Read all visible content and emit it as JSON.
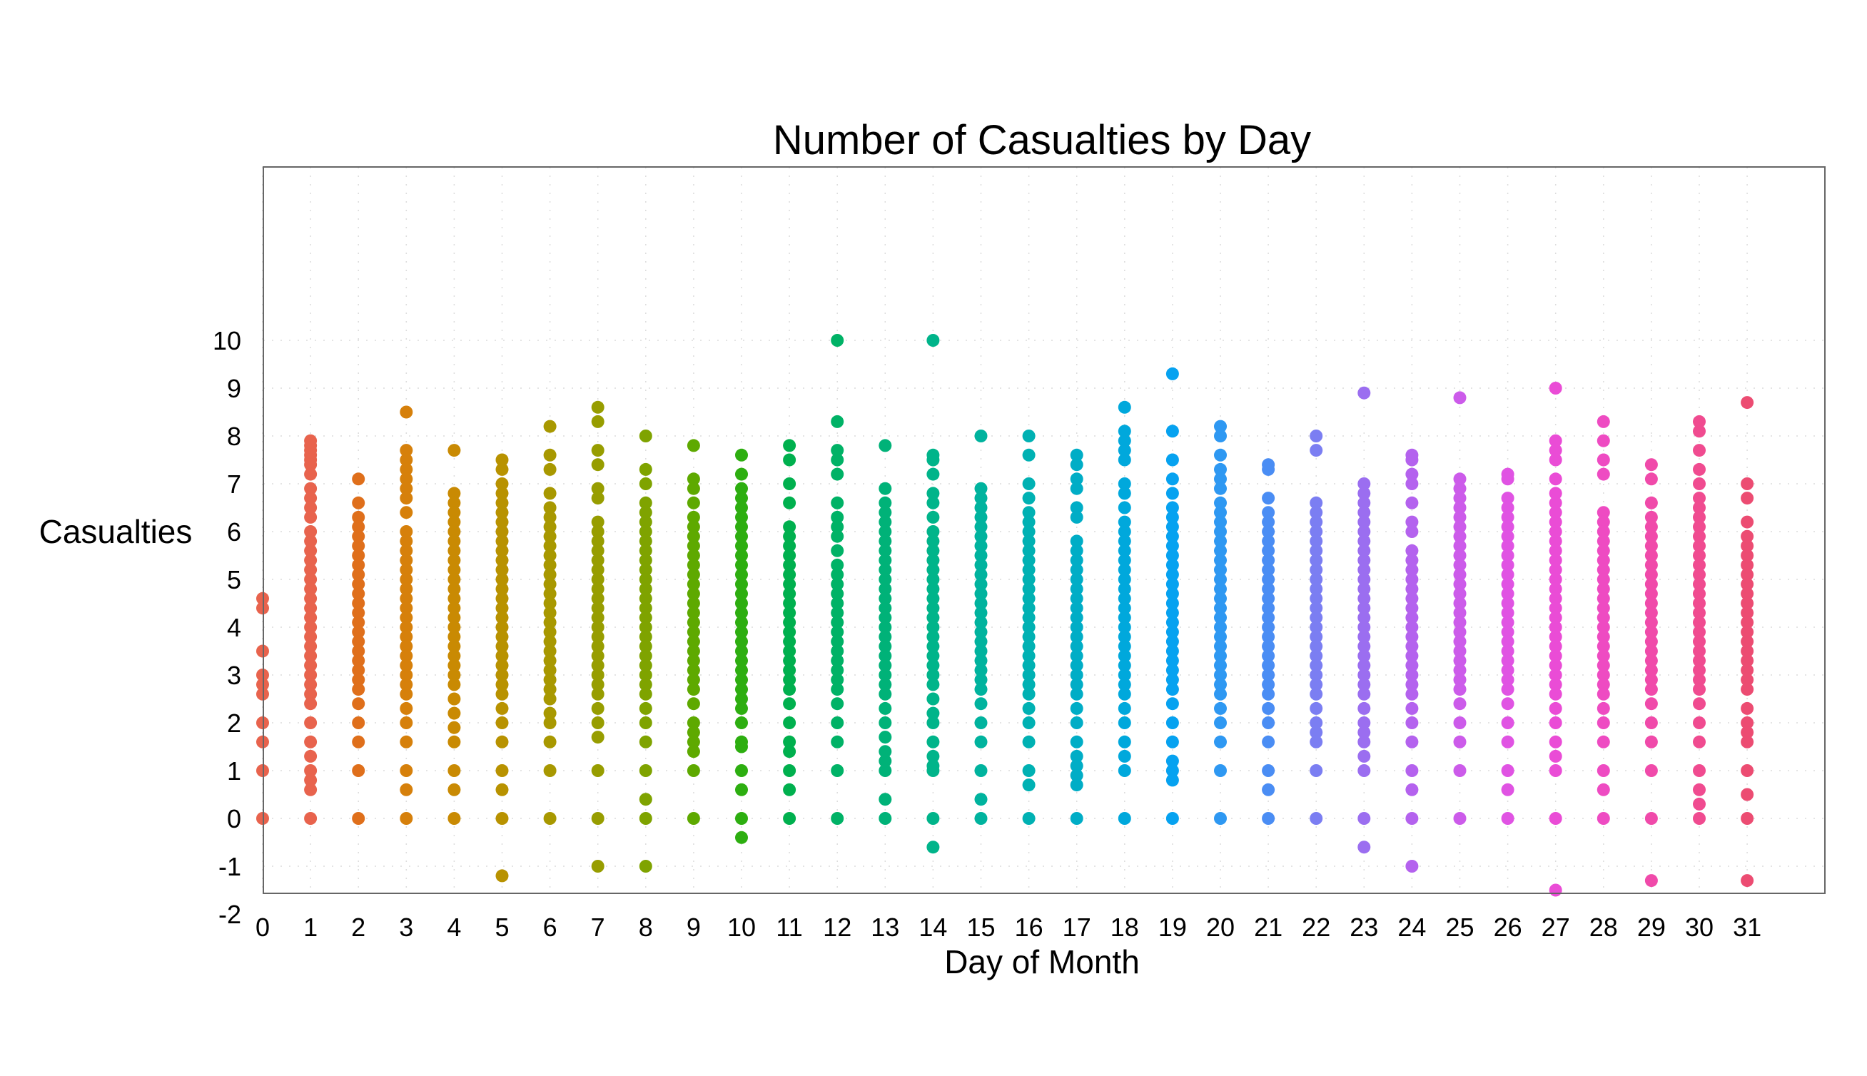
{
  "chart_data": {
    "type": "scatter",
    "title": "Number of Casualties by Day",
    "xlabel": "Day of Month",
    "ylabel": "Casualties",
    "xlim": [
      0,
      32.5
    ],
    "ylim": [
      -1.6,
      13.6
    ],
    "x_ticks": [
      0,
      1,
      2,
      3,
      4,
      5,
      6,
      7,
      8,
      9,
      10,
      11,
      12,
      13,
      14,
      15,
      16,
      17,
      18,
      19,
      20,
      21,
      22,
      23,
      24,
      25,
      26,
      27,
      28,
      29,
      30,
      31
    ],
    "y_ticks": [
      -2,
      -1,
      0,
      1,
      2,
      3,
      4,
      5,
      6,
      7,
      8,
      9,
      10
    ],
    "grid": true,
    "legend": "none",
    "series": [
      {
        "x": 0,
        "color": "#E8634D",
        "values": [
          4.6,
          4.4,
          3.5,
          3.0,
          2.8,
          2.6,
          2.0,
          1.6,
          1.0,
          0
        ]
      },
      {
        "x": 1,
        "color": "#E8634D",
        "values": [
          7.9,
          7.8,
          7.7,
          7.6,
          7.5,
          7.4,
          7.2,
          6.9,
          6.7,
          6.5,
          6.3,
          6.0,
          5.8,
          5.6,
          5.4,
          5.2,
          5.0,
          4.8,
          4.6,
          4.4,
          4.2,
          4.0,
          3.8,
          3.6,
          3.4,
          3.2,
          3.0,
          2.8,
          2.6,
          2.4,
          2.0,
          1.6,
          1.3,
          1.0,
          0.8,
          0.6,
          0
        ]
      },
      {
        "x": 2,
        "color": "#DF6F1B",
        "values": [
          7.1,
          6.6,
          6.3,
          6.1,
          5.9,
          5.7,
          5.5,
          5.3,
          5.1,
          4.9,
          4.7,
          4.5,
          4.3,
          4.1,
          3.9,
          3.7,
          3.5,
          3.3,
          3.1,
          2.9,
          2.7,
          2.4,
          2.0,
          1.6,
          1.0,
          0
        ]
      },
      {
        "x": 3,
        "color": "#D6800B",
        "values": [
          8.5,
          7.7,
          7.5,
          7.3,
          7.1,
          6.9,
          6.7,
          6.4,
          6.0,
          5.8,
          5.6,
          5.4,
          5.2,
          5.0,
          4.8,
          4.6,
          4.4,
          4.2,
          4.0,
          3.8,
          3.6,
          3.4,
          3.2,
          3.0,
          2.8,
          2.6,
          2.3,
          2.0,
          1.6,
          1.0,
          0.6,
          0
        ]
      },
      {
        "x": 4,
        "color": "#C98A03",
        "values": [
          7.7,
          6.8,
          6.6,
          6.4,
          6.2,
          6.0,
          5.8,
          5.6,
          5.4,
          5.2,
          5.0,
          4.8,
          4.6,
          4.4,
          4.2,
          4.0,
          3.8,
          3.6,
          3.4,
          3.2,
          3.0,
          2.8,
          2.5,
          2.2,
          1.9,
          1.6,
          1.0,
          0.6,
          0
        ]
      },
      {
        "x": 5,
        "color": "#B89200",
        "values": [
          7.5,
          7.3,
          7.0,
          6.8,
          6.6,
          6.4,
          6.2,
          6.0,
          5.8,
          5.6,
          5.4,
          5.2,
          5.0,
          4.8,
          4.6,
          4.4,
          4.2,
          4.0,
          3.8,
          3.6,
          3.4,
          3.2,
          3.0,
          2.8,
          2.6,
          2.3,
          2.0,
          1.6,
          1.0,
          0.6,
          0,
          -1.2
        ]
      },
      {
        "x": 6,
        "color": "#A89800",
        "values": [
          8.2,
          7.6,
          7.3,
          6.8,
          6.5,
          6.3,
          6.1,
          5.9,
          5.7,
          5.5,
          5.3,
          5.1,
          4.9,
          4.7,
          4.5,
          4.3,
          4.1,
          3.9,
          3.7,
          3.5,
          3.3,
          3.1,
          2.9,
          2.7,
          2.5,
          2.2,
          2.0,
          1.6,
          1.0,
          0
        ]
      },
      {
        "x": 7,
        "color": "#979D00",
        "values": [
          8.6,
          8.3,
          7.7,
          7.4,
          6.9,
          6.7,
          6.2,
          6.0,
          5.8,
          5.6,
          5.4,
          5.2,
          5.0,
          4.8,
          4.6,
          4.4,
          4.2,
          4.0,
          3.8,
          3.6,
          3.4,
          3.2,
          3.0,
          2.8,
          2.6,
          2.3,
          2.0,
          1.7,
          1.0,
          0,
          -1.0
        ]
      },
      {
        "x": 8,
        "color": "#7FA300",
        "values": [
          8.0,
          7.3,
          7.0,
          6.6,
          6.4,
          6.2,
          6.0,
          5.8,
          5.6,
          5.4,
          5.2,
          5.0,
          4.8,
          4.6,
          4.4,
          4.2,
          4.0,
          3.8,
          3.6,
          3.4,
          3.2,
          3.0,
          2.8,
          2.6,
          2.3,
          2.0,
          1.6,
          1.0,
          0.4,
          0,
          -1.0
        ]
      },
      {
        "x": 9,
        "color": "#5EA900",
        "values": [
          7.8,
          7.1,
          6.9,
          6.6,
          6.3,
          6.1,
          5.9,
          5.7,
          5.5,
          5.3,
          5.1,
          4.9,
          4.7,
          4.5,
          4.3,
          4.1,
          3.9,
          3.7,
          3.5,
          3.3,
          3.1,
          2.9,
          2.7,
          2.4,
          2.0,
          1.8,
          1.6,
          1.4,
          1.0,
          0
        ]
      },
      {
        "x": 10,
        "color": "#2DAE10",
        "values": [
          7.6,
          7.2,
          6.9,
          6.7,
          6.5,
          6.3,
          6.1,
          5.9,
          5.7,
          5.5,
          5.3,
          5.1,
          4.9,
          4.7,
          4.5,
          4.3,
          4.1,
          3.9,
          3.7,
          3.5,
          3.3,
          3.1,
          2.9,
          2.7,
          2.5,
          2.3,
          2.0,
          1.6,
          1.5,
          1.0,
          0.6,
          0,
          -0.4
        ]
      },
      {
        "x": 11,
        "color": "#00B04E",
        "values": [
          7.8,
          7.5,
          7.0,
          6.6,
          6.1,
          5.9,
          5.7,
          5.5,
          5.3,
          5.1,
          4.9,
          4.7,
          4.5,
          4.3,
          4.1,
          3.9,
          3.7,
          3.5,
          3.3,
          3.1,
          2.9,
          2.7,
          2.4,
          2.0,
          1.6,
          1.4,
          1.0,
          0.6,
          0
        ]
      },
      {
        "x": 12,
        "color": "#00B266",
        "values": [
          10.0,
          8.3,
          7.7,
          7.5,
          7.2,
          6.6,
          6.3,
          6.1,
          5.9,
          5.6,
          5.3,
          5.1,
          4.9,
          4.7,
          4.5,
          4.3,
          4.1,
          3.9,
          3.7,
          3.5,
          3.3,
          3.1,
          2.9,
          2.7,
          2.4,
          2.0,
          1.6,
          1.0,
          0
        ]
      },
      {
        "x": 13,
        "color": "#00B278",
        "values": [
          7.8,
          6.9,
          6.6,
          6.4,
          6.2,
          6.0,
          5.8,
          5.6,
          5.4,
          5.2,
          5.0,
          4.8,
          4.6,
          4.4,
          4.2,
          4.0,
          3.8,
          3.6,
          3.4,
          3.2,
          3.0,
          2.8,
          2.6,
          2.3,
          2.0,
          1.7,
          1.4,
          1.2,
          1.0,
          0.4,
          0
        ]
      },
      {
        "x": 14,
        "color": "#00B48A",
        "values": [
          10.0,
          7.6,
          7.5,
          7.2,
          6.8,
          6.6,
          6.3,
          6.0,
          5.8,
          5.6,
          5.4,
          5.2,
          5.0,
          4.8,
          4.6,
          4.4,
          4.2,
          4.0,
          3.8,
          3.6,
          3.4,
          3.2,
          3.0,
          2.8,
          2.5,
          2.2,
          2.0,
          1.6,
          1.3,
          1.1,
          1.0,
          0,
          -0.6
        ]
      },
      {
        "x": 15,
        "color": "#00B39E",
        "values": [
          8.0,
          6.9,
          6.7,
          6.5,
          6.3,
          6.1,
          5.9,
          5.7,
          5.5,
          5.3,
          5.1,
          4.9,
          4.7,
          4.5,
          4.3,
          4.1,
          3.9,
          3.7,
          3.5,
          3.3,
          3.1,
          2.9,
          2.7,
          2.4,
          2.0,
          1.6,
          1.0,
          0.4,
          0
        ]
      },
      {
        "x": 16,
        "color": "#00B1B3",
        "values": [
          8.0,
          7.6,
          7.0,
          6.7,
          6.4,
          6.2,
          6.0,
          5.8,
          5.6,
          5.4,
          5.2,
          5.0,
          4.8,
          4.6,
          4.4,
          4.2,
          4.0,
          3.8,
          3.6,
          3.4,
          3.2,
          3.0,
          2.8,
          2.6,
          2.3,
          2.0,
          1.6,
          1.0,
          0.7,
          0
        ]
      },
      {
        "x": 17,
        "color": "#00ADC6",
        "values": [
          7.6,
          7.4,
          7.1,
          6.9,
          6.5,
          6.3,
          5.8,
          5.6,
          5.4,
          5.2,
          5.0,
          4.8,
          4.6,
          4.4,
          4.2,
          4.0,
          3.8,
          3.6,
          3.4,
          3.2,
          3.0,
          2.8,
          2.6,
          2.3,
          2.0,
          1.6,
          1.3,
          1.1,
          0.9,
          0.7,
          0
        ]
      },
      {
        "x": 18,
        "color": "#00A8DC",
        "values": [
          8.6,
          8.1,
          7.9,
          7.7,
          7.5,
          7.0,
          6.8,
          6.5,
          6.2,
          6.0,
          5.8,
          5.6,
          5.4,
          5.2,
          5.0,
          4.8,
          4.6,
          4.4,
          4.2,
          4.0,
          3.8,
          3.6,
          3.4,
          3.2,
          3.0,
          2.8,
          2.6,
          2.3,
          2.0,
          1.6,
          1.3,
          1.0,
          0
        ]
      },
      {
        "x": 19,
        "color": "#06A2F0",
        "values": [
          9.3,
          8.1,
          7.5,
          7.1,
          6.8,
          6.5,
          6.3,
          6.1,
          5.9,
          5.7,
          5.5,
          5.3,
          5.1,
          4.9,
          4.7,
          4.5,
          4.3,
          4.1,
          3.9,
          3.7,
          3.5,
          3.3,
          3.1,
          2.9,
          2.7,
          2.4,
          2.0,
          1.6,
          1.2,
          1.0,
          0.8,
          0
        ]
      },
      {
        "x": 20,
        "color": "#2E98F2",
        "values": [
          8.2,
          8.0,
          7.6,
          7.3,
          7.1,
          6.9,
          6.6,
          6.4,
          6.2,
          6.0,
          5.8,
          5.6,
          5.4,
          5.2,
          5.0,
          4.8,
          4.6,
          4.4,
          4.2,
          4.0,
          3.8,
          3.6,
          3.4,
          3.2,
          3.0,
          2.8,
          2.6,
          2.3,
          2.0,
          1.6,
          1.0,
          0
        ]
      },
      {
        "x": 21,
        "color": "#4A8DF4",
        "values": [
          7.4,
          7.3,
          6.7,
          6.4,
          6.2,
          6.0,
          5.8,
          5.6,
          5.4,
          5.2,
          5.0,
          4.8,
          4.6,
          4.4,
          4.2,
          4.0,
          3.8,
          3.6,
          3.4,
          3.2,
          3.0,
          2.8,
          2.6,
          2.3,
          2.0,
          1.6,
          1.0,
          0.6,
          0
        ]
      },
      {
        "x": 22,
        "color": "#7B7EF2",
        "values": [
          8.0,
          7.7,
          6.6,
          6.4,
          6.2,
          6.0,
          5.8,
          5.6,
          5.4,
          5.2,
          5.0,
          4.8,
          4.6,
          4.4,
          4.2,
          4.0,
          3.8,
          3.6,
          3.4,
          3.2,
          3.0,
          2.8,
          2.6,
          2.3,
          2.0,
          1.8,
          1.6,
          1.0,
          0
        ]
      },
      {
        "x": 23,
        "color": "#9B6EF0",
        "values": [
          8.9,
          7.0,
          6.8,
          6.6,
          6.4,
          6.2,
          6.0,
          5.8,
          5.6,
          5.4,
          5.2,
          5.0,
          4.8,
          4.6,
          4.4,
          4.2,
          4.0,
          3.8,
          3.6,
          3.4,
          3.2,
          3.0,
          2.8,
          2.6,
          2.3,
          2.0,
          1.8,
          1.6,
          1.3,
          1.0,
          0,
          -0.6
        ]
      },
      {
        "x": 24,
        "color": "#B462EE",
        "values": [
          7.6,
          7.5,
          7.2,
          7.0,
          6.6,
          6.2,
          6.0,
          5.6,
          5.4,
          5.2,
          5.0,
          4.8,
          4.6,
          4.4,
          4.2,
          4.0,
          3.8,
          3.6,
          3.4,
          3.2,
          3.0,
          2.8,
          2.6,
          2.3,
          2.0,
          1.6,
          1.0,
          0.6,
          0,
          -1.0
        ]
      },
      {
        "x": 25,
        "color": "#CC5BEA",
        "values": [
          8.8,
          7.1,
          6.9,
          6.7,
          6.5,
          6.3,
          6.1,
          5.9,
          5.7,
          5.5,
          5.3,
          5.1,
          4.9,
          4.7,
          4.5,
          4.3,
          4.1,
          3.9,
          3.7,
          3.5,
          3.3,
          3.1,
          2.9,
          2.7,
          2.4,
          2.0,
          1.6,
          1.0,
          0
        ]
      },
      {
        "x": 26,
        "color": "#E053E3",
        "values": [
          7.2,
          7.1,
          6.7,
          6.5,
          6.3,
          6.1,
          5.9,
          5.7,
          5.5,
          5.3,
          5.1,
          4.9,
          4.7,
          4.5,
          4.3,
          4.1,
          3.9,
          3.7,
          3.5,
          3.3,
          3.1,
          2.9,
          2.7,
          2.4,
          2.0,
          1.6,
          1.0,
          0.6,
          0
        ]
      },
      {
        "x": 27,
        "color": "#EA4CD6",
        "values": [
          9.0,
          7.9,
          7.7,
          7.5,
          7.1,
          6.8,
          6.6,
          6.4,
          6.2,
          6.0,
          5.8,
          5.6,
          5.4,
          5.2,
          5.0,
          4.8,
          4.6,
          4.4,
          4.2,
          4.0,
          3.8,
          3.6,
          3.4,
          3.2,
          3.0,
          2.8,
          2.6,
          2.3,
          2.0,
          1.6,
          1.3,
          1.0,
          0,
          -1.5
        ]
      },
      {
        "x": 28,
        "color": "#EE4BC2",
        "values": [
          8.3,
          7.9,
          7.5,
          7.2,
          6.4,
          6.2,
          6.0,
          5.8,
          5.6,
          5.4,
          5.2,
          5.0,
          4.8,
          4.6,
          4.4,
          4.2,
          4.0,
          3.8,
          3.6,
          3.4,
          3.2,
          3.0,
          2.8,
          2.6,
          2.3,
          2.0,
          1.6,
          1.0,
          0.6,
          0
        ]
      },
      {
        "x": 29,
        "color": "#F04AAA",
        "values": [
          7.4,
          7.1,
          6.6,
          6.3,
          6.1,
          5.9,
          5.7,
          5.5,
          5.3,
          5.1,
          4.9,
          4.7,
          4.5,
          4.3,
          4.1,
          3.9,
          3.7,
          3.5,
          3.3,
          3.1,
          2.9,
          2.7,
          2.4,
          2.0,
          1.6,
          1.0,
          0,
          -1.3
        ]
      },
      {
        "x": 30,
        "color": "#F04B90",
        "values": [
          8.3,
          8.1,
          7.7,
          7.3,
          7.0,
          6.7,
          6.5,
          6.3,
          6.1,
          5.9,
          5.7,
          5.5,
          5.3,
          5.1,
          4.9,
          4.7,
          4.5,
          4.3,
          4.1,
          3.9,
          3.7,
          3.5,
          3.3,
          3.1,
          2.9,
          2.7,
          2.4,
          2.0,
          1.6,
          1.0,
          0.6,
          0.3,
          0
        ]
      },
      {
        "x": 31,
        "color": "#EC4C72",
        "values": [
          8.7,
          7.0,
          6.7,
          6.2,
          5.9,
          5.7,
          5.5,
          5.3,
          5.1,
          4.9,
          4.7,
          4.5,
          4.3,
          4.1,
          3.9,
          3.7,
          3.5,
          3.3,
          3.1,
          2.9,
          2.7,
          2.3,
          2.0,
          1.8,
          1.6,
          1.0,
          0.5,
          0,
          -1.3
        ]
      }
    ]
  }
}
